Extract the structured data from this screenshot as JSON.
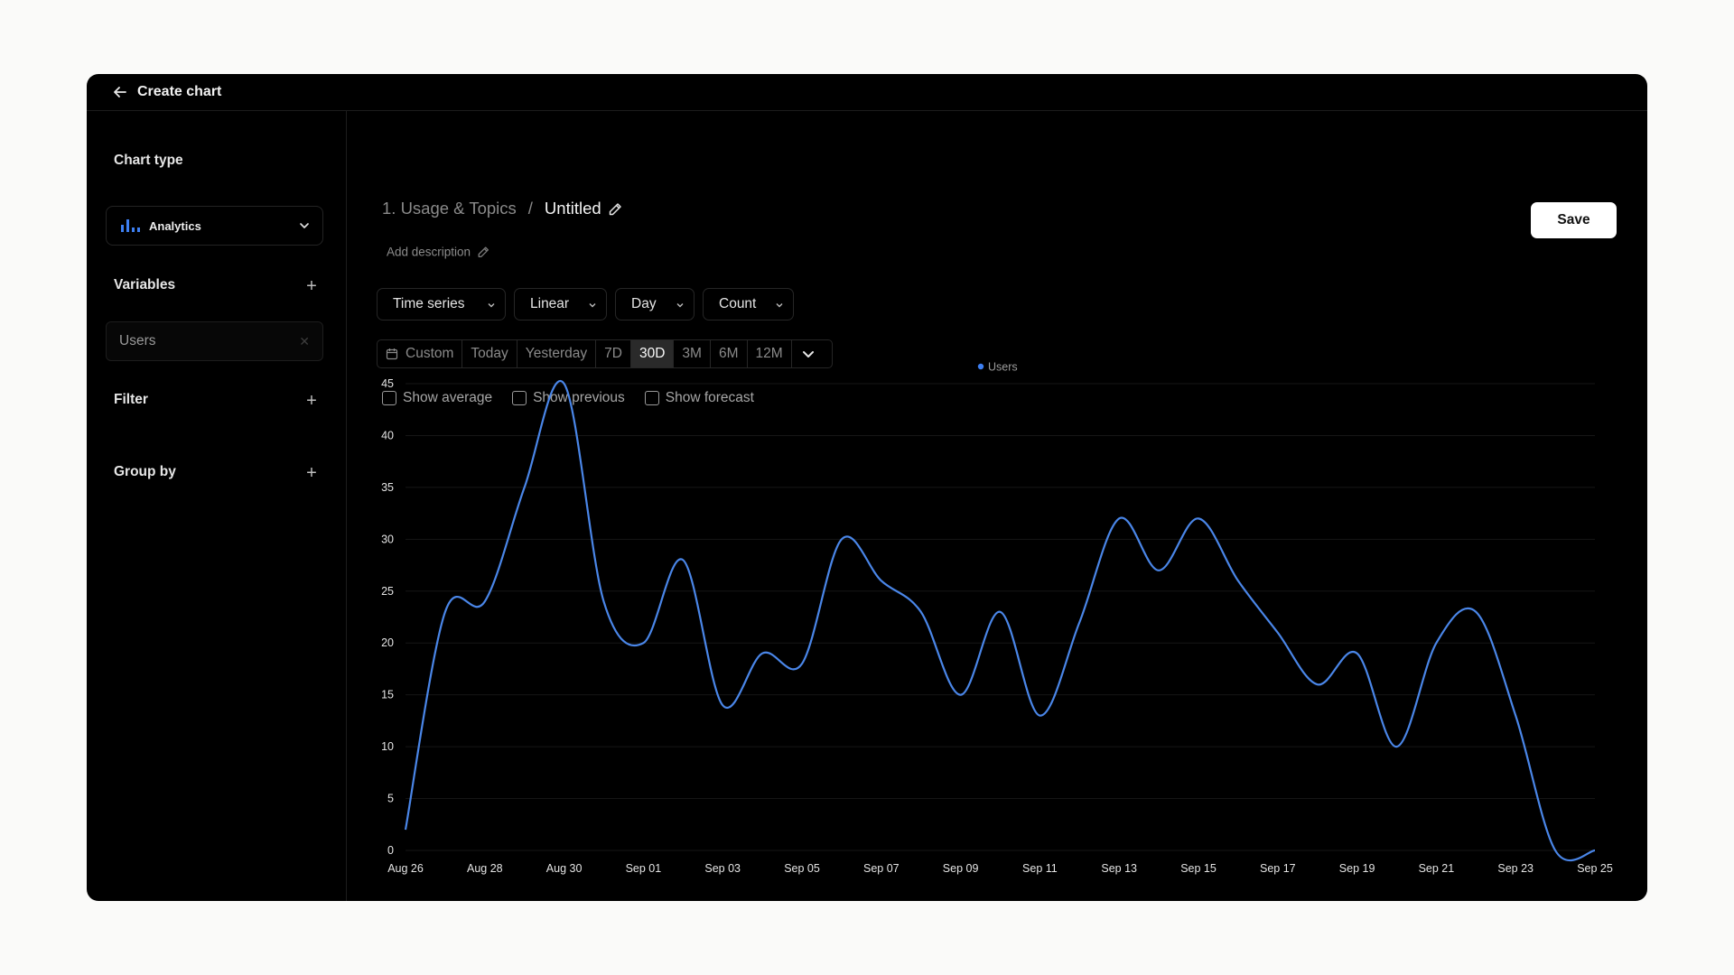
{
  "window": {
    "title": "Create chart"
  },
  "sidebar": {
    "chart_type_heading": "Chart type",
    "chart_type_value": "Analytics",
    "variables_heading": "Variables",
    "variable_chip": "Users",
    "filter_heading": "Filter",
    "group_by_heading": "Group by"
  },
  "header": {
    "breadcrumb_parent": "1. Usage & Topics",
    "breadcrumb_separator": "/",
    "breadcrumb_current": "Untitled",
    "add_description": "Add description",
    "save_label": "Save"
  },
  "controls": {
    "dropdowns": [
      "Time series",
      "Linear",
      "Day",
      "Count"
    ],
    "range_options": [
      "Custom",
      "Today",
      "Yesterday",
      "7D",
      "30D",
      "3M",
      "6M",
      "12M"
    ],
    "range_selected": "30D",
    "checkboxes": [
      "Show average",
      "Show previous",
      "Show forecast"
    ]
  },
  "colors": {
    "accent": "#3d7ff2",
    "background": "#000000",
    "series": "#4a86e8"
  },
  "chart_data": {
    "type": "line",
    "x": [
      "Aug 26",
      "Aug 27",
      "Aug 28",
      "Aug 29",
      "Aug 30",
      "Aug 31",
      "Sep 01",
      "Sep 02",
      "Sep 03",
      "Sep 04",
      "Sep 05",
      "Sep 06",
      "Sep 07",
      "Sep 08",
      "Sep 09",
      "Sep 10",
      "Sep 11",
      "Sep 12",
      "Sep 13",
      "Sep 14",
      "Sep 15",
      "Sep 16",
      "Sep 17",
      "Sep 18",
      "Sep 19",
      "Sep 20",
      "Sep 21",
      "Sep 22",
      "Sep 23",
      "Sep 24",
      "Sep 25"
    ],
    "x_tick_labels": [
      "Aug 26",
      "Aug 28",
      "Aug 30",
      "Sep 01",
      "Sep 03",
      "Sep 05",
      "Sep 07",
      "Sep 09",
      "Sep 11",
      "Sep 13",
      "Sep 15",
      "Sep 17",
      "Sep 19",
      "Sep 21",
      "Sep 23",
      "Sep 25"
    ],
    "series": [
      {
        "name": "Users",
        "values": [
          2,
          23,
          24,
          35,
          45,
          24,
          20,
          28,
          14,
          19,
          18,
          30,
          26,
          23,
          15,
          23,
          13,
          22,
          32,
          27,
          32,
          26,
          21,
          16,
          19,
          10,
          20,
          23,
          13,
          0,
          0
        ]
      }
    ],
    "yticks": [
      0,
      5,
      10,
      15,
      20,
      25,
      30,
      35,
      40,
      45
    ],
    "ylim": [
      0,
      45
    ],
    "grid": true,
    "legend": "top-center"
  }
}
